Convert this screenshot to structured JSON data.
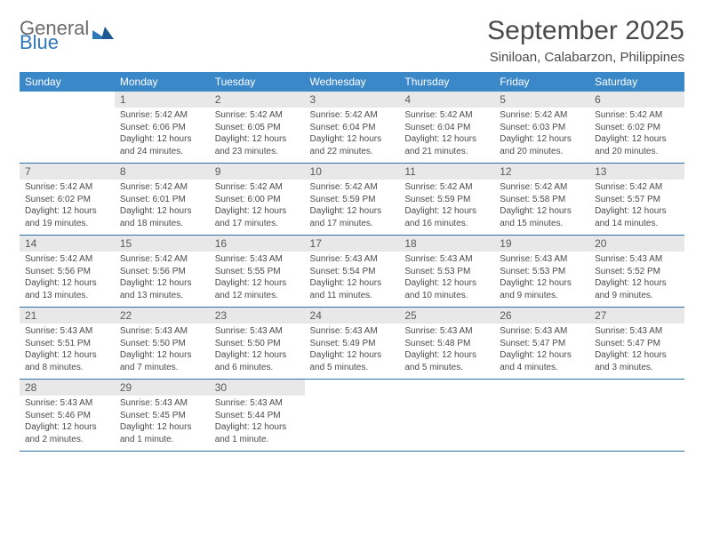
{
  "brand": {
    "line1": "General",
    "line2": "Blue"
  },
  "title": "September 2025",
  "location": "Siniloan, Calabarzon, Philippines",
  "colors": {
    "header_bg": "#3b88c9",
    "header_text": "#ffffff",
    "daynum_bg": "#e8e8e8",
    "daynum_text": "#5a5a5a",
    "body_text": "#4a4a4a",
    "row_border": "#2e6ea8",
    "brand_gray": "#6b6b6b",
    "brand_blue": "#2e77b8"
  },
  "daysOfWeek": [
    "Sunday",
    "Monday",
    "Tuesday",
    "Wednesday",
    "Thursday",
    "Friday",
    "Saturday"
  ],
  "weeks": [
    [
      {
        "n": "",
        "sunrise": "",
        "sunset": "",
        "daylight": ""
      },
      {
        "n": "1",
        "sunrise": "Sunrise: 5:42 AM",
        "sunset": "Sunset: 6:06 PM",
        "daylight": "Daylight: 12 hours and 24 minutes."
      },
      {
        "n": "2",
        "sunrise": "Sunrise: 5:42 AM",
        "sunset": "Sunset: 6:05 PM",
        "daylight": "Daylight: 12 hours and 23 minutes."
      },
      {
        "n": "3",
        "sunrise": "Sunrise: 5:42 AM",
        "sunset": "Sunset: 6:04 PM",
        "daylight": "Daylight: 12 hours and 22 minutes."
      },
      {
        "n": "4",
        "sunrise": "Sunrise: 5:42 AM",
        "sunset": "Sunset: 6:04 PM",
        "daylight": "Daylight: 12 hours and 21 minutes."
      },
      {
        "n": "5",
        "sunrise": "Sunrise: 5:42 AM",
        "sunset": "Sunset: 6:03 PM",
        "daylight": "Daylight: 12 hours and 20 minutes."
      },
      {
        "n": "6",
        "sunrise": "Sunrise: 5:42 AM",
        "sunset": "Sunset: 6:02 PM",
        "daylight": "Daylight: 12 hours and 20 minutes."
      }
    ],
    [
      {
        "n": "7",
        "sunrise": "Sunrise: 5:42 AM",
        "sunset": "Sunset: 6:02 PM",
        "daylight": "Daylight: 12 hours and 19 minutes."
      },
      {
        "n": "8",
        "sunrise": "Sunrise: 5:42 AM",
        "sunset": "Sunset: 6:01 PM",
        "daylight": "Daylight: 12 hours and 18 minutes."
      },
      {
        "n": "9",
        "sunrise": "Sunrise: 5:42 AM",
        "sunset": "Sunset: 6:00 PM",
        "daylight": "Daylight: 12 hours and 17 minutes."
      },
      {
        "n": "10",
        "sunrise": "Sunrise: 5:42 AM",
        "sunset": "Sunset: 5:59 PM",
        "daylight": "Daylight: 12 hours and 17 minutes."
      },
      {
        "n": "11",
        "sunrise": "Sunrise: 5:42 AM",
        "sunset": "Sunset: 5:59 PM",
        "daylight": "Daylight: 12 hours and 16 minutes."
      },
      {
        "n": "12",
        "sunrise": "Sunrise: 5:42 AM",
        "sunset": "Sunset: 5:58 PM",
        "daylight": "Daylight: 12 hours and 15 minutes."
      },
      {
        "n": "13",
        "sunrise": "Sunrise: 5:42 AM",
        "sunset": "Sunset: 5:57 PM",
        "daylight": "Daylight: 12 hours and 14 minutes."
      }
    ],
    [
      {
        "n": "14",
        "sunrise": "Sunrise: 5:42 AM",
        "sunset": "Sunset: 5:56 PM",
        "daylight": "Daylight: 12 hours and 13 minutes."
      },
      {
        "n": "15",
        "sunrise": "Sunrise: 5:42 AM",
        "sunset": "Sunset: 5:56 PM",
        "daylight": "Daylight: 12 hours and 13 minutes."
      },
      {
        "n": "16",
        "sunrise": "Sunrise: 5:43 AM",
        "sunset": "Sunset: 5:55 PM",
        "daylight": "Daylight: 12 hours and 12 minutes."
      },
      {
        "n": "17",
        "sunrise": "Sunrise: 5:43 AM",
        "sunset": "Sunset: 5:54 PM",
        "daylight": "Daylight: 12 hours and 11 minutes."
      },
      {
        "n": "18",
        "sunrise": "Sunrise: 5:43 AM",
        "sunset": "Sunset: 5:53 PM",
        "daylight": "Daylight: 12 hours and 10 minutes."
      },
      {
        "n": "19",
        "sunrise": "Sunrise: 5:43 AM",
        "sunset": "Sunset: 5:53 PM",
        "daylight": "Daylight: 12 hours and 9 minutes."
      },
      {
        "n": "20",
        "sunrise": "Sunrise: 5:43 AM",
        "sunset": "Sunset: 5:52 PM",
        "daylight": "Daylight: 12 hours and 9 minutes."
      }
    ],
    [
      {
        "n": "21",
        "sunrise": "Sunrise: 5:43 AM",
        "sunset": "Sunset: 5:51 PM",
        "daylight": "Daylight: 12 hours and 8 minutes."
      },
      {
        "n": "22",
        "sunrise": "Sunrise: 5:43 AM",
        "sunset": "Sunset: 5:50 PM",
        "daylight": "Daylight: 12 hours and 7 minutes."
      },
      {
        "n": "23",
        "sunrise": "Sunrise: 5:43 AM",
        "sunset": "Sunset: 5:50 PM",
        "daylight": "Daylight: 12 hours and 6 minutes."
      },
      {
        "n": "24",
        "sunrise": "Sunrise: 5:43 AM",
        "sunset": "Sunset: 5:49 PM",
        "daylight": "Daylight: 12 hours and 5 minutes."
      },
      {
        "n": "25",
        "sunrise": "Sunrise: 5:43 AM",
        "sunset": "Sunset: 5:48 PM",
        "daylight": "Daylight: 12 hours and 5 minutes."
      },
      {
        "n": "26",
        "sunrise": "Sunrise: 5:43 AM",
        "sunset": "Sunset: 5:47 PM",
        "daylight": "Daylight: 12 hours and 4 minutes."
      },
      {
        "n": "27",
        "sunrise": "Sunrise: 5:43 AM",
        "sunset": "Sunset: 5:47 PM",
        "daylight": "Daylight: 12 hours and 3 minutes."
      }
    ],
    [
      {
        "n": "28",
        "sunrise": "Sunrise: 5:43 AM",
        "sunset": "Sunset: 5:46 PM",
        "daylight": "Daylight: 12 hours and 2 minutes."
      },
      {
        "n": "29",
        "sunrise": "Sunrise: 5:43 AM",
        "sunset": "Sunset: 5:45 PM",
        "daylight": "Daylight: 12 hours and 1 minute."
      },
      {
        "n": "30",
        "sunrise": "Sunrise: 5:43 AM",
        "sunset": "Sunset: 5:44 PM",
        "daylight": "Daylight: 12 hours and 1 minute."
      },
      {
        "n": "",
        "sunrise": "",
        "sunset": "",
        "daylight": ""
      },
      {
        "n": "",
        "sunrise": "",
        "sunset": "",
        "daylight": ""
      },
      {
        "n": "",
        "sunrise": "",
        "sunset": "",
        "daylight": ""
      },
      {
        "n": "",
        "sunrise": "",
        "sunset": "",
        "daylight": ""
      }
    ]
  ]
}
